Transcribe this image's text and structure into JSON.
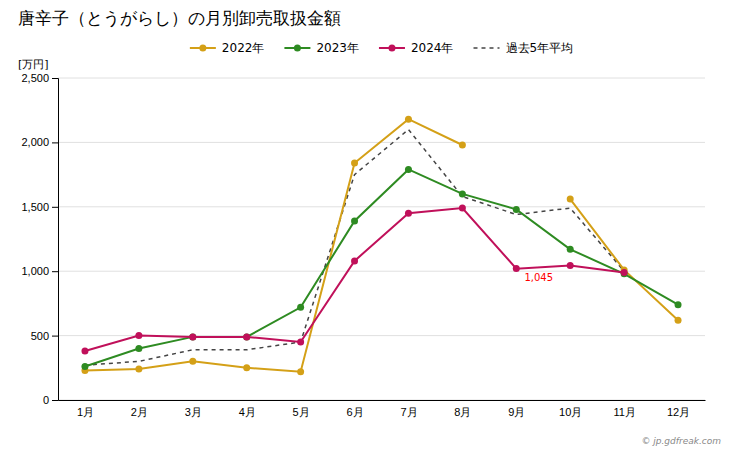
{
  "chart_data": {
    "type": "line",
    "title": "唐辛子（とうがらし）の月別卸売取扱金額",
    "y_label": "[万円]",
    "categories": [
      "1月",
      "2月",
      "3月",
      "4月",
      "5月",
      "6月",
      "7月",
      "8月",
      "9月",
      "10月",
      "11月",
      "12月"
    ],
    "series": [
      {
        "name": "2022年",
        "color": "#D4A017",
        "marker": "circle",
        "line_style": "solid",
        "values": [
          230,
          240,
          300,
          250,
          220,
          1840,
          2180,
          1980,
          null,
          1560,
          1010,
          620
        ]
      },
      {
        "name": "2023年",
        "color": "#2E8B22",
        "marker": "circle",
        "line_style": "solid",
        "values": [
          260,
          400,
          490,
          490,
          720,
          1390,
          1790,
          1600,
          1480,
          1170,
          980,
          740
        ]
      },
      {
        "name": "2024年",
        "color": "#C0105A",
        "marker": "circle",
        "line_style": "solid",
        "values": [
          380,
          500,
          490,
          490,
          450,
          1080,
          1450,
          1490,
          1020,
          1045,
          990,
          null
        ]
      },
      {
        "name": "過去5年平均",
        "color": "#444444",
        "marker": "none",
        "line_style": "dashed",
        "values": [
          270,
          300,
          390,
          390,
          450,
          1750,
          2100,
          1580,
          1440,
          1490,
          1000,
          null
        ]
      }
    ],
    "annotations": [
      {
        "text": "1,045",
        "category": "9月",
        "value": 1045,
        "color": "red"
      }
    ],
    "ylim": [
      0,
      2500
    ],
    "yticks": [
      0,
      500,
      {
        "value": 1000,
        "label": "1,000"
      },
      {
        "value": 1500,
        "label": "1,500"
      },
      {
        "value": 2000,
        "label": "2,000"
      },
      {
        "value": 2500,
        "label": "2,500"
      }
    ],
    "grid": "y",
    "legend": "top",
    "source": "© jp.gdfreak.com"
  }
}
